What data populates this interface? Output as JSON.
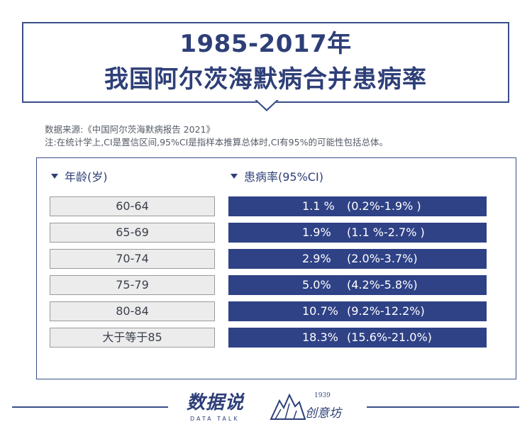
{
  "header": {
    "title_line1": "1985-2017年",
    "title_line2": "我国阿尔茨海默病合并患病率"
  },
  "source_text": "数据来源:《中国阿尔茨海默病报告 2021》",
  "note_text": "注:在统计学上,CI是置信区间,95%CI是指样本推算总体时,CI有95%的可能性包括总体。",
  "chart_data": {
    "type": "table",
    "columns": [
      "年龄(岁)",
      "患病率(95%CI)"
    ],
    "rows": [
      {
        "age": "60-64",
        "rate": "1.1 %",
        "ci": "(0.2%-1.9% )",
        "value": 1.1,
        "ci_low": 0.2,
        "ci_high": 1.9
      },
      {
        "age": "65-69",
        "rate": "1.9%",
        "ci": "(1.1 %-2.7% )",
        "value": 1.9,
        "ci_low": 1.1,
        "ci_high": 2.7
      },
      {
        "age": "70-74",
        "rate": "2.9%",
        "ci": "(2.0%-3.7%)",
        "value": 2.9,
        "ci_low": 2.0,
        "ci_high": 3.7
      },
      {
        "age": "75-79",
        "rate": "5.0%",
        "ci": "(4.2%-5.8%)",
        "value": 5.0,
        "ci_low": 4.2,
        "ci_high": 5.8
      },
      {
        "age": "80-84",
        "rate": "10.7%",
        "ci": "(9.2%-12.2%)",
        "value": 10.7,
        "ci_low": 9.2,
        "ci_high": 12.2
      },
      {
        "age": "大于等于85",
        "rate": "18.3%",
        "ci": "(15.6%-21.0%)",
        "value": 18.3,
        "ci_low": 15.6,
        "ci_high": 21.0
      }
    ]
  },
  "footer": {
    "logo1_main": "数据说",
    "logo1_sub": "DATA TALK",
    "logo2_year": "1939",
    "logo2_text": "创意坊"
  },
  "colors": {
    "accent": "#2f4286",
    "cell_gray": "#ececec",
    "border": "#3b4e8a"
  }
}
